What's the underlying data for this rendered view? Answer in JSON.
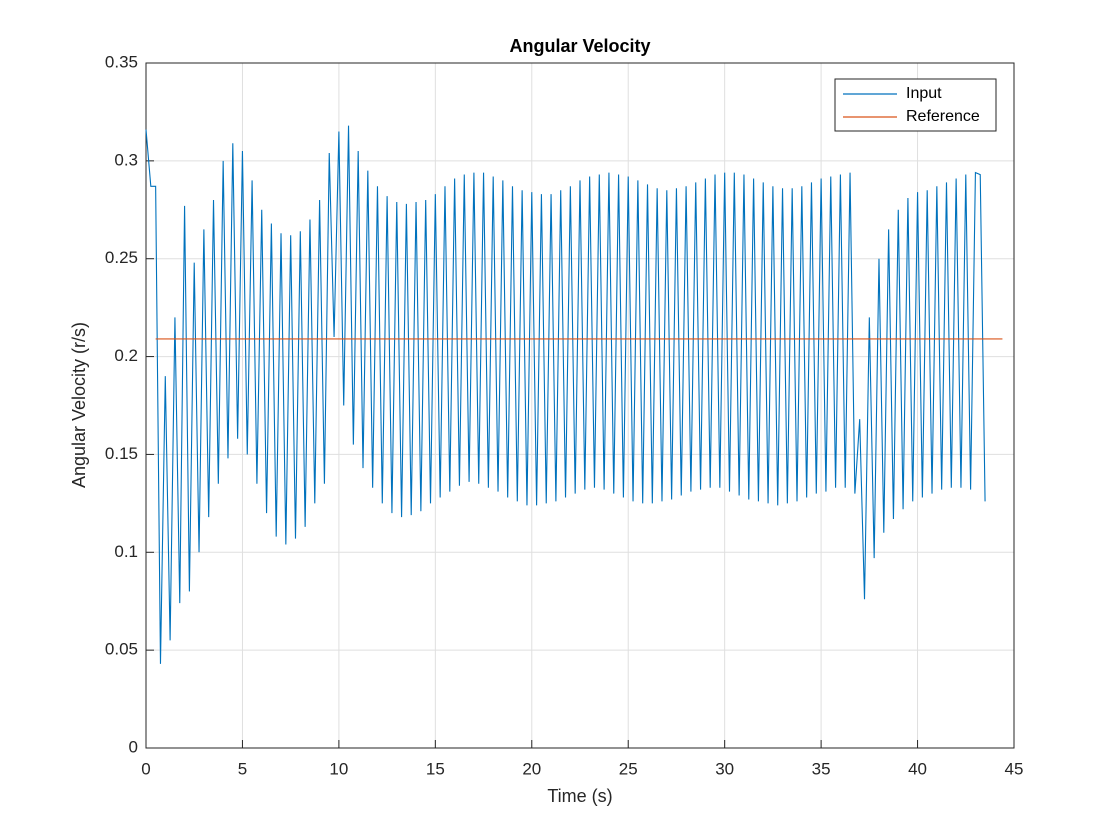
{
  "chart_data": {
    "type": "line",
    "title": "Angular Velocity",
    "xlabel": "Time (s)",
    "ylabel": "Angular Velocity (r/s)",
    "xlim": [
      0,
      45
    ],
    "xticks": [
      0,
      5,
      10,
      15,
      20,
      25,
      30,
      35,
      40,
      45
    ],
    "ylim": [
      0,
      0.35
    ],
    "yticks": [
      0,
      0.05,
      0.1,
      0.15,
      0.2,
      0.25,
      0.3,
      0.35
    ],
    "grid": true,
    "legend": "upper right",
    "series": [
      {
        "name": "Input",
        "color": "#0072bd",
        "x": [
          0,
          0.25,
          0.5,
          0.75,
          1,
          1.25,
          1.5,
          1.75,
          2,
          2.25,
          2.5,
          2.75,
          3,
          3.25,
          3.5,
          3.75,
          4,
          4.25,
          4.5,
          4.75,
          5,
          5.25,
          5.5,
          5.75,
          6,
          6.25,
          6.5,
          6.75,
          7,
          7.25,
          7.5,
          7.75,
          8,
          8.25,
          8.5,
          8.75,
          9,
          9.25,
          9.5,
          9.75,
          10,
          10.25,
          10.5,
          10.75,
          11,
          11.25,
          11.5,
          11.75,
          12,
          12.25,
          12.5,
          12.75,
          13,
          13.25,
          13.5,
          13.75,
          14,
          14.25,
          14.5,
          14.75,
          15,
          15.25,
          15.5,
          15.75,
          16,
          16.25,
          16.5,
          16.75,
          17,
          17.25,
          17.5,
          17.75,
          18,
          18.25,
          18.5,
          18.75,
          19,
          19.25,
          19.5,
          19.75,
          20,
          20.25,
          20.5,
          20.75,
          21,
          21.25,
          21.5,
          21.75,
          22,
          22.25,
          22.5,
          22.75,
          23,
          23.25,
          23.5,
          23.75,
          24,
          24.25,
          24.5,
          24.75,
          25,
          25.25,
          25.5,
          25.75,
          26,
          26.25,
          26.5,
          26.75,
          27,
          27.25,
          27.5,
          27.75,
          28,
          28.25,
          28.5,
          28.75,
          29,
          29.25,
          29.5,
          29.75,
          30,
          30.25,
          30.5,
          30.75,
          31,
          31.25,
          31.5,
          31.75,
          32,
          32.25,
          32.5,
          32.75,
          33,
          33.25,
          33.5,
          33.75,
          34,
          34.25,
          34.5,
          34.75,
          35,
          35.25,
          35.5,
          35.75,
          36,
          36.25,
          36.5,
          36.75,
          37,
          37.25,
          37.5,
          37.75,
          38,
          38.25,
          38.5,
          38.75,
          39,
          39.25,
          39.5,
          39.75,
          40,
          40.25,
          40.5,
          40.75,
          41,
          41.25,
          41.5,
          41.75,
          42,
          42.25,
          42.5,
          42.75,
          43,
          43.25,
          43.5
        ],
        "y": [
          0.316,
          0.287,
          0.287,
          0.043,
          0.19,
          0.055,
          0.22,
          0.074,
          0.277,
          0.08,
          0.248,
          0.1,
          0.265,
          0.118,
          0.28,
          0.135,
          0.3,
          0.148,
          0.309,
          0.158,
          0.305,
          0.15,
          0.29,
          0.135,
          0.275,
          0.12,
          0.268,
          0.108,
          0.263,
          0.104,
          0.262,
          0.107,
          0.264,
          0.113,
          0.27,
          0.125,
          0.28,
          0.135,
          0.304,
          0.21,
          0.315,
          0.175,
          0.318,
          0.155,
          0.305,
          0.143,
          0.295,
          0.133,
          0.287,
          0.125,
          0.282,
          0.12,
          0.279,
          0.118,
          0.278,
          0.119,
          0.279,
          0.121,
          0.28,
          0.125,
          0.283,
          0.128,
          0.287,
          0.131,
          0.291,
          0.134,
          0.293,
          0.136,
          0.294,
          0.135,
          0.294,
          0.133,
          0.292,
          0.131,
          0.29,
          0.128,
          0.287,
          0.126,
          0.285,
          0.124,
          0.284,
          0.124,
          0.283,
          0.125,
          0.283,
          0.126,
          0.285,
          0.128,
          0.287,
          0.13,
          0.29,
          0.132,
          0.292,
          0.133,
          0.293,
          0.132,
          0.294,
          0.13,
          0.293,
          0.128,
          0.292,
          0.126,
          0.29,
          0.125,
          0.288,
          0.125,
          0.286,
          0.126,
          0.285,
          0.127,
          0.286,
          0.129,
          0.287,
          0.131,
          0.289,
          0.132,
          0.291,
          0.133,
          0.293,
          0.133,
          0.294,
          0.131,
          0.294,
          0.129,
          0.293,
          0.127,
          0.291,
          0.126,
          0.289,
          0.125,
          0.287,
          0.124,
          0.286,
          0.125,
          0.286,
          0.126,
          0.287,
          0.128,
          0.289,
          0.13,
          0.291,
          0.131,
          0.292,
          0.133,
          0.293,
          0.133,
          0.294,
          0.13,
          0.168,
          0.076,
          0.22,
          0.097,
          0.25,
          0.11,
          0.265,
          0.117,
          0.275,
          0.122,
          0.281,
          0.126,
          0.284,
          0.128,
          0.285,
          0.13,
          0.287,
          0.132,
          0.289,
          0.133,
          0.291,
          0.133,
          0.293,
          0.132,
          0.294,
          0.293,
          0.126
        ]
      },
      {
        "name": "Reference",
        "color": "#d95319",
        "x": [
          0.5,
          44.4
        ],
        "y": [
          0.209,
          0.209
        ]
      }
    ]
  }
}
